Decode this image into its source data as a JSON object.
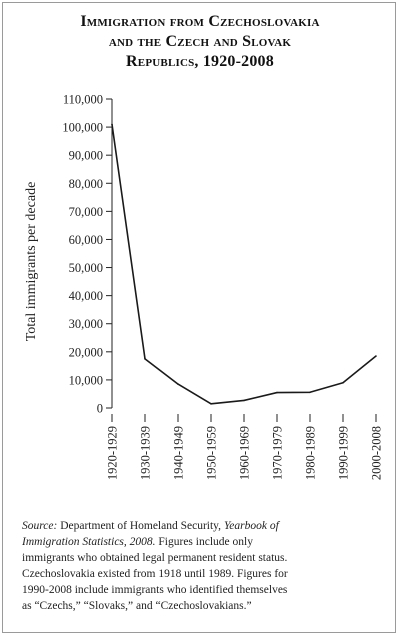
{
  "title_lines": [
    "Immigration from Czechoslovakia",
    "and the Czech and Slovak",
    "Republics, 1920-2008"
  ],
  "note": {
    "source_label": "Source:",
    "source_text": " Department of Homeland Security, ",
    "source_italic": "Yearbook of",
    "line2_italic": "Immigration Statistics, 2008.",
    "line2_text": " Figures include only",
    "lines": [
      "immigrants who obtained legal permanent resident status.",
      "Czechoslovakia existed from 1918 until 1989. Figures for",
      "1990-2008 include immigrants who identified themselves",
      "as “Czechs,” “Slovaks,” and “Czechoslovakians.”"
    ]
  },
  "chart_data": {
    "type": "line",
    "title": "Immigration from Czechoslovakia and the Czech and Slovak Republics, 1920-2008",
    "xlabel": "",
    "ylabel": "Total immigrants per decade",
    "categories": [
      "1920-1929",
      "1930-1939",
      "1940-1949",
      "1950-1959",
      "1960-1969",
      "1970-1979",
      "1980-1989",
      "1990-1999",
      "2000-2008"
    ],
    "values": [
      101000,
      17500,
      8500,
      1500,
      2700,
      5500,
      5600,
      9000,
      18500
    ],
    "y_ticks": [
      0,
      10000,
      20000,
      30000,
      40000,
      50000,
      60000,
      70000,
      80000,
      90000,
      100000,
      110000
    ],
    "y_tick_labels": [
      "0",
      "10,000",
      "20,000",
      "30,000",
      "40,000",
      "50,000",
      "60,000",
      "70,000",
      "80,000",
      "90,000",
      "100,000",
      "110,000"
    ],
    "ylim": [
      0,
      110000
    ],
    "grid": false,
    "line_color": "#1a1a1a"
  }
}
